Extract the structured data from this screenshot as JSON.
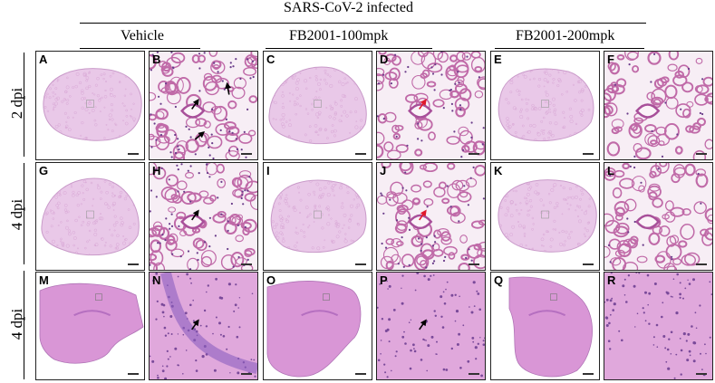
{
  "header": {
    "title": "SARS-CoV-2 infected",
    "groups": [
      "Vehicle",
      "FB2001-100mpk",
      "FB2001-200mpk"
    ]
  },
  "rows": [
    {
      "label": "2 dpi",
      "panels": [
        "A",
        "B",
        "C",
        "D",
        "E",
        "F"
      ]
    },
    {
      "label": "4 dpi",
      "panels": [
        "G",
        "H",
        "I",
        "J",
        "K",
        "L"
      ]
    },
    {
      "label": "4 dpi",
      "panels": [
        "M",
        "N",
        "O",
        "P",
        "Q",
        "R"
      ]
    }
  ],
  "colors": {
    "lung_tissue": "#e9c8e8",
    "lung_alveoli": "#c06aa8",
    "brain_tissue": "#d996d6",
    "brain_dense": "#b56fc0",
    "arrow_black": "#000000",
    "arrow_red": "#e0192b"
  },
  "arrows": {
    "B": [
      "black",
      "black",
      "black"
    ],
    "D": [
      "red"
    ],
    "H": [
      "black"
    ],
    "J": [
      "red"
    ],
    "N": [
      "black"
    ],
    "P": [
      "black"
    ]
  }
}
